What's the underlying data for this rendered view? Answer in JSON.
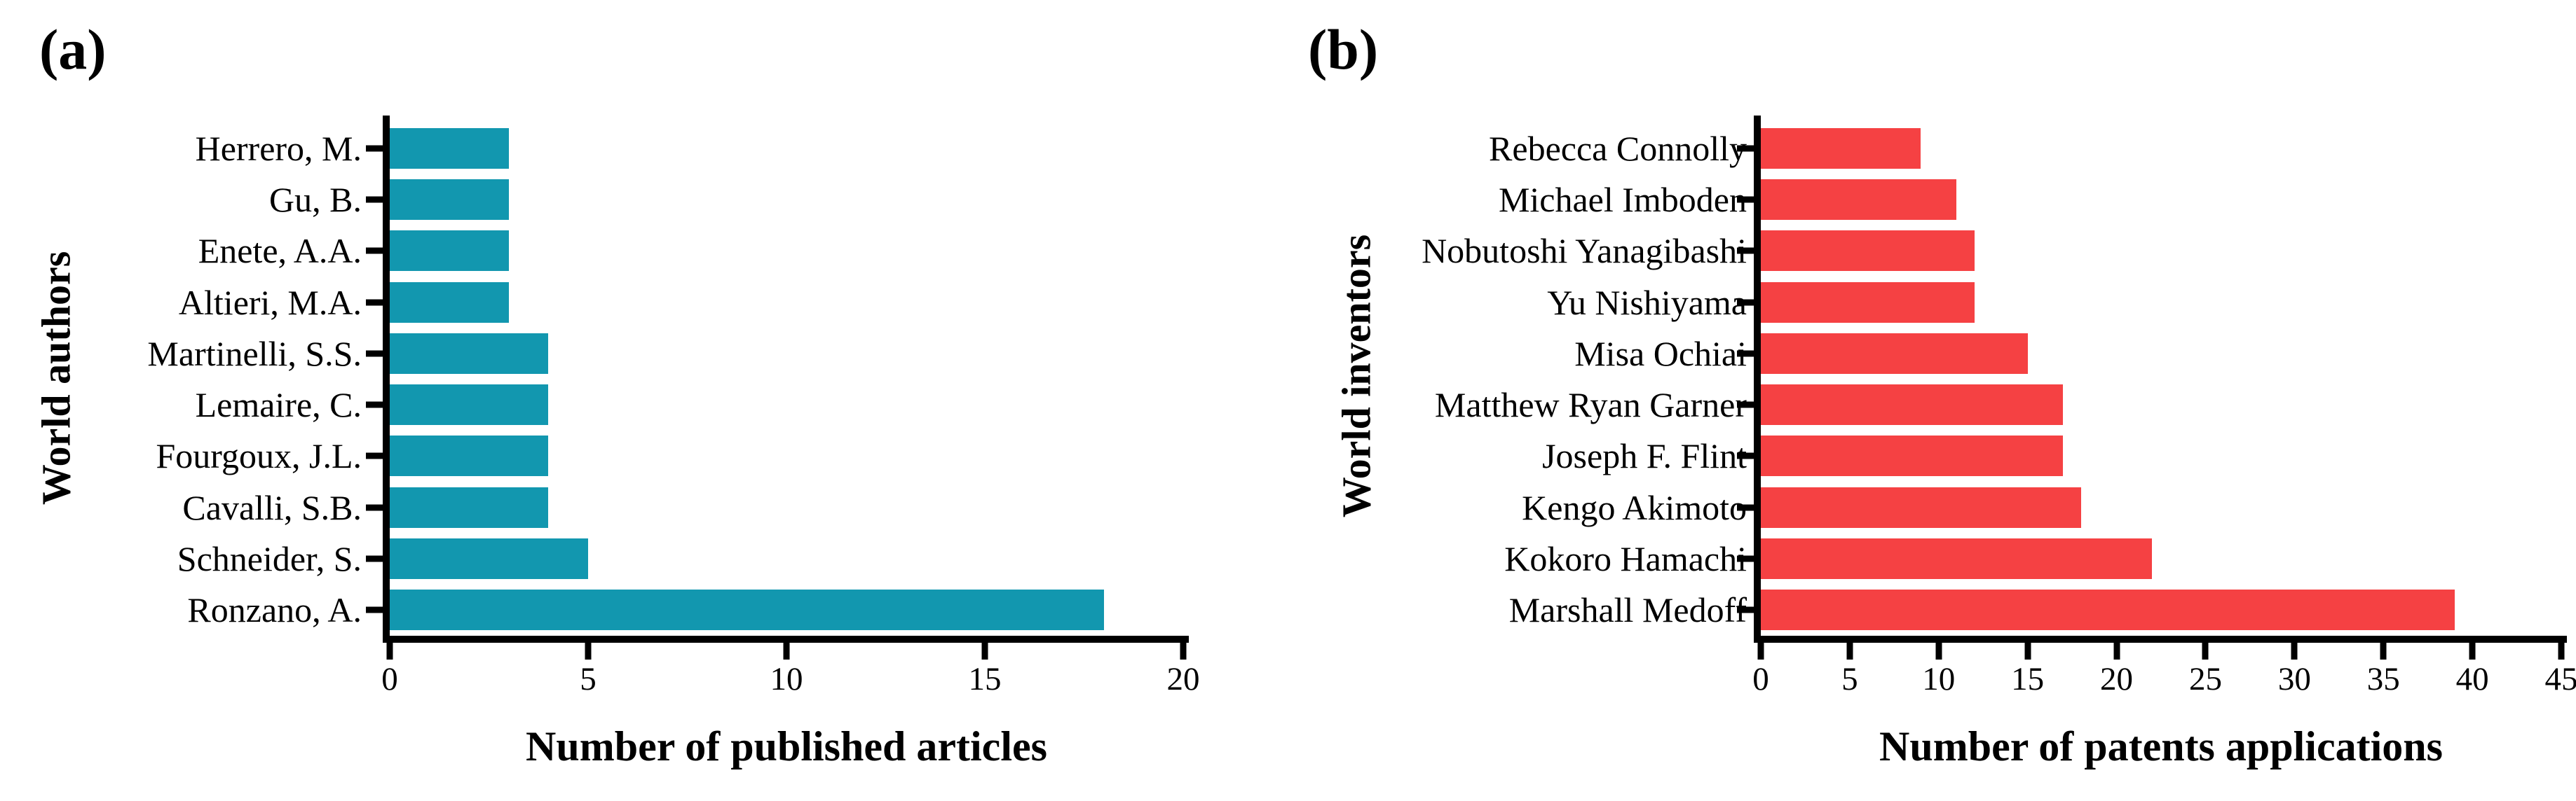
{
  "figure": {
    "background": "#ffffff",
    "axis_color": "#000000",
    "text_color": "#000000"
  },
  "chart_data": [
    {
      "type": "bar",
      "orientation": "horizontal",
      "panel_label": "(a)",
      "ylabel": "World authors",
      "xlabel": "Number of published articles",
      "categories": [
        "Herrero, M.",
        "Gu, B.",
        "Enete, A.A.",
        "Altieri, M.A.",
        "Martinelli, S.S.",
        "Lemaire, C.",
        "Fourgoux, J.L.",
        "Cavalli, S.B.",
        "Schneider, S.",
        "Ronzano, A."
      ],
      "values": [
        3,
        3,
        3,
        3,
        4,
        4,
        4,
        4,
        5,
        18
      ],
      "xlim": [
        0,
        20
      ],
      "xticks": [
        0,
        5,
        10,
        15,
        20
      ],
      "bar_color": "#1297AF",
      "grid": false,
      "legend": false
    },
    {
      "type": "bar",
      "orientation": "horizontal",
      "panel_label": "(b)",
      "ylabel": "World inventors",
      "xlabel": "Number of patents applications",
      "categories": [
        "Rebecca Connolly",
        "Michael Imboden",
        "Nobutoshi Yanagibashi",
        "Yu Nishiyama",
        "Misa Ochiai",
        "Matthew Ryan Garner",
        "Joseph F. Flint",
        "Kengo Akimoto",
        "Kokoro Hamachi",
        "Marshall Medoff"
      ],
      "values": [
        9,
        11,
        12,
        12,
        15,
        17,
        17,
        18,
        22,
        39
      ],
      "xlim": [
        0,
        45
      ],
      "xticks": [
        0,
        5,
        10,
        15,
        20,
        25,
        30,
        35,
        40,
        45
      ],
      "bar_color": "#F54143",
      "grid": false,
      "legend": false
    }
  ]
}
